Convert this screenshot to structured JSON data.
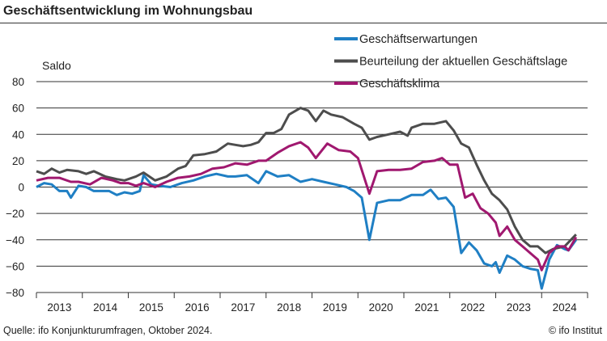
{
  "header": {
    "title": "Geschäftsentwicklung im Wohnungsbau"
  },
  "footer": {
    "source": "Quelle: ifo Konjunkturumfragen, Oktober 2024.",
    "copyright": "© ifo Institut"
  },
  "chart_data": {
    "type": "line",
    "title": "Geschäftsentwicklung im Wohnungsbau",
    "ylabel": "Saldo",
    "xlabel": "",
    "ylim": [
      -80,
      80
    ],
    "yticks": [
      80,
      60,
      40,
      20,
      0,
      -20,
      -40,
      -60,
      -80
    ],
    "xlim": [
      "2013-01",
      "2024-12"
    ],
    "xticks": [
      "2013",
      "2014",
      "2015",
      "2016",
      "2017",
      "2018",
      "2019",
      "2020",
      "2021",
      "2022",
      "2023",
      "2024"
    ],
    "grid": "horizontal",
    "legend": "top-right",
    "series": [
      {
        "name": "Geschäftserwartungen",
        "color": "#1f7fc4",
        "x": [
          "2013-01",
          "2013-03",
          "2013-05",
          "2013-07",
          "2013-09",
          "2013-10",
          "2013-12",
          "2014-02",
          "2014-04",
          "2014-06",
          "2014-08",
          "2014-10",
          "2014-12",
          "2015-02",
          "2015-04",
          "2015-05",
          "2015-07",
          "2015-09",
          "2015-12",
          "2016-03",
          "2016-06",
          "2016-09",
          "2016-12",
          "2017-03",
          "2017-05",
          "2017-08",
          "2017-11",
          "2018-01",
          "2018-04",
          "2018-07",
          "2018-10",
          "2019-01",
          "2019-04",
          "2019-07",
          "2019-10",
          "2019-12",
          "2020-02",
          "2020-04",
          "2020-06",
          "2020-09",
          "2020-12",
          "2021-03",
          "2021-06",
          "2021-08",
          "2021-10",
          "2021-12",
          "2022-02",
          "2022-04",
          "2022-06",
          "2022-08",
          "2022-10",
          "2022-12",
          "2023-01",
          "2023-02",
          "2023-04",
          "2023-06",
          "2023-08",
          "2023-10",
          "2023-12",
          "2024-01",
          "2024-03",
          "2024-05",
          "2024-07",
          "2024-08",
          "2024-10"
        ],
        "values": [
          0,
          3,
          2,
          -3,
          -3,
          -8,
          1,
          0,
          -3,
          -3,
          -3,
          -6,
          -4,
          -5,
          -3,
          9,
          2,
          1,
          0,
          3,
          5,
          8,
          10,
          8,
          8,
          9,
          3,
          12,
          8,
          9,
          4,
          6,
          4,
          2,
          0,
          -3,
          -8,
          -40,
          -12,
          -10,
          -10,
          -6,
          -6,
          -2,
          -9,
          -8,
          -15,
          -50,
          -42,
          -48,
          -58,
          -60,
          -57,
          -65,
          -52,
          -55,
          -60,
          -62,
          -63,
          -77,
          -55,
          -44,
          -47,
          -48,
          -40
        ]
      },
      {
        "name": "Beurteilung der aktuellen Geschäftslage",
        "color": "#4d4d4d",
        "x": [
          "2013-01",
          "2013-03",
          "2013-05",
          "2013-07",
          "2013-09",
          "2013-12",
          "2014-02",
          "2014-04",
          "2014-07",
          "2014-10",
          "2014-12",
          "2015-02",
          "2015-03",
          "2015-05",
          "2015-08",
          "2015-11",
          "2016-02",
          "2016-04",
          "2016-06",
          "2016-09",
          "2016-12",
          "2017-03",
          "2017-05",
          "2017-07",
          "2017-09",
          "2017-11",
          "2018-01",
          "2018-03",
          "2018-05",
          "2018-07",
          "2018-10",
          "2018-12",
          "2019-02",
          "2019-04",
          "2019-06",
          "2019-09",
          "2019-12",
          "2020-02",
          "2020-04",
          "2020-06",
          "2020-09",
          "2020-12",
          "2021-02",
          "2021-03",
          "2021-06",
          "2021-09",
          "2021-12",
          "2022-02",
          "2022-04",
          "2022-06",
          "2022-08",
          "2022-10",
          "2022-12",
          "2023-02",
          "2023-04",
          "2023-06",
          "2023-08",
          "2023-10",
          "2023-12",
          "2024-02",
          "2024-04",
          "2024-07",
          "2024-10"
        ],
        "values": [
          12,
          10,
          14,
          11,
          13,
          12,
          10,
          12,
          8,
          6,
          5,
          7,
          8,
          11,
          5,
          8,
          14,
          16,
          24,
          25,
          27,
          33,
          32,
          31,
          32,
          34,
          41,
          41,
          44,
          55,
          60,
          58,
          50,
          58,
          55,
          53,
          48,
          45,
          36,
          38,
          40,
          42,
          39,
          45,
          48,
          48,
          50,
          43,
          33,
          30,
          17,
          5,
          -5,
          -10,
          -17,
          -30,
          -40,
          -45,
          -45,
          -50,
          -47,
          -45,
          -36
        ]
      },
      {
        "name": "Geschäftsklima",
        "color": "#a0186f",
        "x": [
          "2013-01",
          "2013-04",
          "2013-07",
          "2013-10",
          "2013-12",
          "2014-03",
          "2014-06",
          "2014-09",
          "2014-11",
          "2015-01",
          "2015-03",
          "2015-05",
          "2015-08",
          "2015-11",
          "2016-02",
          "2016-05",
          "2016-08",
          "2016-11",
          "2017-02",
          "2017-05",
          "2017-08",
          "2017-11",
          "2018-01",
          "2018-04",
          "2018-07",
          "2018-10",
          "2018-12",
          "2019-02",
          "2019-05",
          "2019-08",
          "2019-11",
          "2020-01",
          "2020-04",
          "2020-06",
          "2020-09",
          "2020-12",
          "2021-03",
          "2021-06",
          "2021-09",
          "2021-11",
          "2022-01",
          "2022-03",
          "2022-05",
          "2022-07",
          "2022-09",
          "2022-11",
          "2023-01",
          "2023-02",
          "2023-04",
          "2023-06",
          "2023-08",
          "2023-10",
          "2023-12",
          "2024-01",
          "2024-03",
          "2024-05",
          "2024-07",
          "2024-08",
          "2024-10"
        ],
        "values": [
          5,
          7,
          7,
          4,
          4,
          2,
          7,
          5,
          3,
          3,
          1,
          3,
          0,
          4,
          7,
          8,
          10,
          14,
          15,
          18,
          17,
          20,
          20,
          26,
          31,
          34,
          30,
          22,
          33,
          28,
          27,
          22,
          -5,
          12,
          13,
          13,
          14,
          19,
          20,
          22,
          17,
          17,
          -8,
          -5,
          -16,
          -20,
          -27,
          -37,
          -30,
          -40,
          -45,
          -50,
          -55,
          -63,
          -50,
          -45,
          -45,
          -48,
          -38
        ]
      }
    ]
  }
}
